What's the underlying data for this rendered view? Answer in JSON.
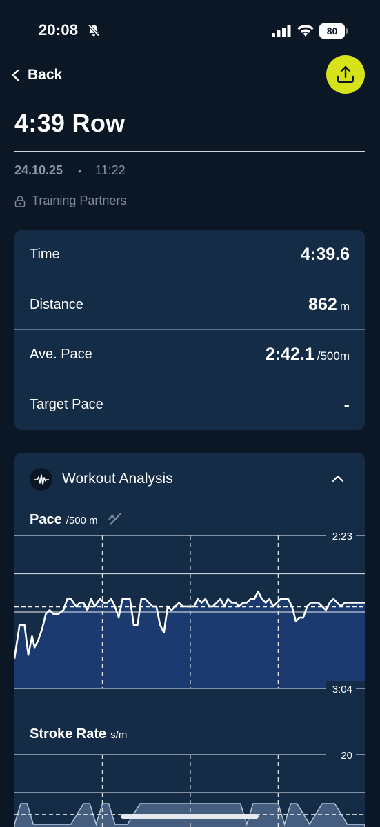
{
  "status": {
    "time": "20:08",
    "battery": "80"
  },
  "nav": {
    "back_label": "Back"
  },
  "workout": {
    "title": "4:39 Row",
    "date": "24.10.25",
    "separator": "•",
    "time": "11:22",
    "visibility": "Training Partners"
  },
  "stats": [
    {
      "label": "Time",
      "value": "4:39.6",
      "unit": ""
    },
    {
      "label": "Distance",
      "value": "862",
      "unit": "m"
    },
    {
      "label": "Ave. Pace",
      "value": "2:42.1",
      "unit": "/500m"
    },
    {
      "label": "Target Pace",
      "value": "-",
      "unit": ""
    }
  ],
  "analysis": {
    "title": "Workout Analysis",
    "pace_title": "Pace",
    "pace_unit": "/500 m",
    "stroke_title": "Stroke Rate",
    "stroke_unit": "s/m"
  },
  "colors": {
    "accent": "#d6e31a",
    "card": "#152c47",
    "background": "#0c1726",
    "fill": "#1a3a70"
  },
  "chart_data": [
    {
      "type": "area",
      "title": "Pace",
      "ylabel": "/500 m",
      "y_tick_labels": [
        "2:23",
        "3:04"
      ],
      "ylim_seconds": [
        143,
        184
      ],
      "y_inverted": true,
      "average_line_seconds": 162.1,
      "grid": true,
      "x_unit": "seconds",
      "x": [
        0,
        4,
        8,
        11,
        14,
        16,
        19,
        22,
        25,
        28,
        31,
        35,
        39,
        42,
        45,
        49,
        52,
        55,
        58,
        61,
        64,
        68,
        71,
        74,
        77,
        80,
        83,
        86,
        89,
        92,
        95,
        98,
        101,
        104,
        107,
        110,
        113,
        116,
        119,
        122,
        125,
        128,
        131,
        134,
        137,
        140,
        143,
        146,
        149,
        152,
        155,
        158,
        161,
        164,
        167,
        170,
        173,
        176,
        179,
        182,
        185,
        188,
        191,
        194,
        197,
        200,
        203,
        206,
        209,
        212,
        215,
        218,
        221,
        224,
        227,
        230,
        233,
        236,
        239,
        242,
        245,
        248,
        251,
        254,
        257,
        260,
        263,
        266,
        269,
        272,
        275,
        279
      ],
      "values": [
        176,
        167,
        167,
        175,
        170,
        173,
        171,
        168,
        164,
        163,
        164,
        164,
        163,
        160,
        160,
        162,
        161,
        161,
        163,
        160,
        162,
        160,
        161,
        161,
        160,
        162,
        165,
        160,
        160,
        160,
        167,
        167,
        160,
        160,
        161,
        162,
        162,
        167,
        169,
        162,
        163,
        162,
        161,
        162,
        162,
        162,
        162,
        160,
        161,
        160,
        162,
        162,
        161,
        160,
        162,
        160,
        161,
        161,
        162,
        161,
        161,
        160,
        160,
        158,
        160,
        161,
        160,
        162,
        161,
        160,
        160,
        160,
        162,
        166,
        165,
        165,
        162,
        161,
        161,
        161,
        162,
        163,
        161,
        160,
        161,
        162,
        161,
        161,
        161,
        161,
        161,
        161
      ]
    },
    {
      "type": "area",
      "title": "Stroke Rate",
      "ylabel": "s/m",
      "y_tick_labels": [
        "20"
      ],
      "grid": true,
      "x_unit": "seconds",
      "x": [
        0,
        5,
        10,
        15,
        25,
        35,
        45,
        55,
        60,
        65,
        70,
        75,
        80,
        90,
        100,
        110,
        120,
        140,
        160,
        180,
        185,
        190,
        200,
        210,
        215,
        220,
        225,
        235,
        245,
        255,
        265,
        279
      ],
      "values": [
        14,
        17,
        17,
        14,
        14,
        14,
        14,
        17,
        17,
        14,
        17,
        17,
        14,
        14,
        17,
        17,
        17,
        17,
        17,
        17,
        14,
        17,
        17,
        17,
        14,
        17,
        17,
        14,
        17,
        17,
        14,
        14
      ]
    }
  ]
}
